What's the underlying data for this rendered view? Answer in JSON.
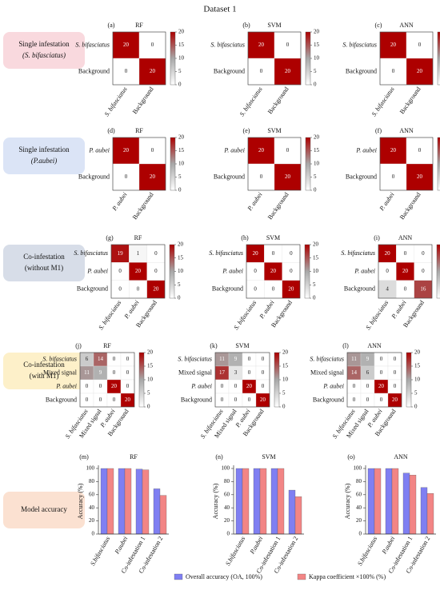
{
  "title": "Dataset 1",
  "row_labels": [
    {
      "lines": [
        "Single infestation",
        "(S. bifasciatus)"
      ],
      "styles": [
        "normal",
        "italic"
      ],
      "color": "#f9d9de"
    },
    {
      "lines": [
        "Single infestation",
        "(P.aubei)"
      ],
      "styles": [
        "normal",
        "italic"
      ],
      "color": "#dbe4f6"
    },
    {
      "lines": [
        "Co-infestation",
        "(without M1)"
      ],
      "styles": [
        "normal",
        "normal"
      ],
      "color": "#d7dde8"
    },
    {
      "lines": [
        "Co-infestation",
        "(with M1)"
      ],
      "styles": [
        "normal",
        "normal"
      ],
      "color": "#fdf0c9"
    },
    {
      "lines": [
        "Model accuracy"
      ],
      "styles": [
        "normal"
      ],
      "color": "#fbe1d1"
    }
  ],
  "legend": [
    {
      "name": "Overall accuracy (OA, 100%)",
      "color": "#7f7ff2"
    },
    {
      "name": "Kappa coefficient ×100% (%)",
      "color": "#f28585"
    }
  ],
  "chart_data": [
    {
      "type": "heatmap",
      "panel": "(a)",
      "title": "RF",
      "categories": [
        "S. bifasciatus",
        "Background"
      ],
      "category_styles": [
        "italic",
        "normal"
      ],
      "values": [
        [
          20,
          0
        ],
        [
          0,
          20
        ]
      ],
      "zlim": [
        0,
        20
      ],
      "zticks": [
        0,
        5,
        10,
        15,
        20
      ],
      "colormap": [
        "#ffffff",
        "#a8a8a8",
        "#ad0000"
      ]
    },
    {
      "type": "heatmap",
      "panel": "(b)",
      "title": "SVM",
      "categories": [
        "S. bifasciatus",
        "Background"
      ],
      "category_styles": [
        "italic",
        "normal"
      ],
      "values": [
        [
          20,
          0
        ],
        [
          0,
          20
        ]
      ],
      "zlim": [
        0,
        20
      ],
      "zticks": [
        0,
        5,
        10,
        15,
        20
      ],
      "colormap": [
        "#ffffff",
        "#a8a8a8",
        "#ad0000"
      ]
    },
    {
      "type": "heatmap",
      "panel": "(c)",
      "title": "ANN",
      "categories": [
        "S. bifasciatus",
        "Background"
      ],
      "category_styles": [
        "italic",
        "normal"
      ],
      "values": [
        [
          20,
          0
        ],
        [
          0,
          20
        ]
      ],
      "zlim": [
        0,
        20
      ],
      "zticks": [
        0,
        5,
        10,
        15,
        20
      ],
      "colormap": [
        "#ffffff",
        "#a8a8a8",
        "#ad0000"
      ]
    },
    {
      "type": "heatmap",
      "panel": "(d)",
      "title": "RF",
      "categories": [
        "P. aubei",
        "Background"
      ],
      "category_styles": [
        "italic",
        "normal"
      ],
      "values": [
        [
          20,
          0
        ],
        [
          0,
          20
        ]
      ],
      "zlim": [
        0,
        20
      ],
      "zticks": [
        0,
        5,
        10,
        15,
        20
      ],
      "colormap": [
        "#ffffff",
        "#a8a8a8",
        "#ad0000"
      ]
    },
    {
      "type": "heatmap",
      "panel": "(e)",
      "title": "SVM",
      "categories": [
        "P. aubei",
        "Background"
      ],
      "category_styles": [
        "italic",
        "normal"
      ],
      "values": [
        [
          20,
          0
        ],
        [
          0,
          20
        ]
      ],
      "zlim": [
        0,
        20
      ],
      "zticks": [
        0,
        5,
        10,
        15,
        20
      ],
      "colormap": [
        "#ffffff",
        "#a8a8a8",
        "#ad0000"
      ]
    },
    {
      "type": "heatmap",
      "panel": "(f)",
      "title": "ANN",
      "categories": [
        "P. aubei",
        "Background"
      ],
      "category_styles": [
        "italic",
        "normal"
      ],
      "values": [
        [
          20,
          0
        ],
        [
          0,
          20
        ]
      ],
      "zlim": [
        0,
        20
      ],
      "zticks": [
        0,
        5,
        10,
        15,
        20
      ],
      "colormap": [
        "#ffffff",
        "#a8a8a8",
        "#ad0000"
      ]
    },
    {
      "type": "heatmap",
      "panel": "(g)",
      "title": "RF",
      "categories": [
        "S. bifasciatus",
        "P. aubei",
        "Background"
      ],
      "category_styles": [
        "italic",
        "italic",
        "normal"
      ],
      "values": [
        [
          19,
          1,
          0
        ],
        [
          0,
          20,
          0
        ],
        [
          0,
          0,
          20
        ]
      ],
      "zlim": [
        0,
        20
      ],
      "zticks": [
        0,
        5,
        10,
        15,
        20
      ],
      "colormap": [
        "#ffffff",
        "#a8a8a8",
        "#ad0000"
      ]
    },
    {
      "type": "heatmap",
      "panel": "(h)",
      "title": "SVM",
      "categories": [
        "S. bifasciatus",
        "P. aubei",
        "Background"
      ],
      "category_styles": [
        "italic",
        "italic",
        "normal"
      ],
      "values": [
        [
          20,
          0,
          0
        ],
        [
          0,
          20,
          0
        ],
        [
          0,
          0,
          20
        ]
      ],
      "zlim": [
        0,
        20
      ],
      "zticks": [
        0,
        5,
        10,
        15,
        20
      ],
      "colormap": [
        "#ffffff",
        "#a8a8a8",
        "#ad0000"
      ]
    },
    {
      "type": "heatmap",
      "panel": "(i)",
      "title": "ANN",
      "categories": [
        "S. bifasciatus",
        "P. aubei",
        "Background"
      ],
      "category_styles": [
        "italic",
        "italic",
        "normal"
      ],
      "values": [
        [
          20,
          0,
          0
        ],
        [
          0,
          20,
          0
        ],
        [
          4,
          0,
          16
        ]
      ],
      "zlim": [
        0,
        20
      ],
      "zticks": [
        0,
        5,
        10,
        15,
        20
      ],
      "colormap": [
        "#ffffff",
        "#a8a8a8",
        "#ad0000"
      ]
    },
    {
      "type": "heatmap",
      "panel": "(j)",
      "title": "RF",
      "categories": [
        "S. bifasciatus",
        "Mixed signal",
        "P. aubei",
        "Background"
      ],
      "category_styles": [
        "italic",
        "normal",
        "italic",
        "normal"
      ],
      "values": [
        [
          6,
          14,
          0,
          0
        ],
        [
          11,
          9,
          0,
          0
        ],
        [
          0,
          0,
          20,
          0
        ],
        [
          0,
          0,
          0,
          20
        ]
      ],
      "zlim": [
        0,
        20
      ],
      "zticks": [
        0,
        5,
        10,
        15,
        20
      ],
      "colormap": [
        "#ffffff",
        "#a8a8a8",
        "#ad0000"
      ]
    },
    {
      "type": "heatmap",
      "panel": "(k)",
      "title": "SVM",
      "categories": [
        "S. bifasciatus",
        "Mixed signal",
        "P. aubei",
        "Background"
      ],
      "category_styles": [
        "italic",
        "normal",
        "italic",
        "normal"
      ],
      "values": [
        [
          11,
          9,
          0,
          0
        ],
        [
          17,
          3,
          0,
          0
        ],
        [
          0,
          0,
          20,
          0
        ],
        [
          0,
          0,
          0,
          20
        ]
      ],
      "zlim": [
        0,
        20
      ],
      "zticks": [
        0,
        5,
        10,
        15,
        20
      ],
      "colormap": [
        "#ffffff",
        "#a8a8a8",
        "#ad0000"
      ]
    },
    {
      "type": "heatmap",
      "panel": "(l)",
      "title": "ANN",
      "categories": [
        "S. bifasciatus",
        "Mixed signal",
        "P. aubei",
        "Background"
      ],
      "category_styles": [
        "italic",
        "normal",
        "italic",
        "normal"
      ],
      "values": [
        [
          11,
          9,
          0,
          0
        ],
        [
          14,
          6,
          0,
          0
        ],
        [
          0,
          0,
          20,
          0
        ],
        [
          0,
          0,
          0,
          20
        ]
      ],
      "zlim": [
        0,
        20
      ],
      "zticks": [
        0,
        5,
        10,
        15,
        20
      ],
      "colormap": [
        "#ffffff",
        "#a8a8a8",
        "#ad0000"
      ]
    },
    {
      "type": "bar",
      "panel": "(m)",
      "title": "RF",
      "ylabel": "Accuracy (%)",
      "categories": [
        "S.bifasciatus",
        "P.aubei",
        "Co-infestation 1",
        "Co-infestation 2"
      ],
      "series": [
        {
          "values": [
            100,
            100,
            99,
            69
          ]
        },
        {
          "values": [
            100,
            100,
            98,
            59
          ]
        }
      ],
      "ylim": [
        0,
        100
      ],
      "yticks": [
        0,
        20,
        40,
        60,
        80,
        100
      ]
    },
    {
      "type": "bar",
      "panel": "(n)",
      "title": "SVM",
      "ylabel": "Accuracy (%)",
      "categories": [
        "S.bifasciatus",
        "P.aubei",
        "Co-infestation 1",
        "Co-infestation 2"
      ],
      "series": [
        {
          "values": [
            100,
            100,
            100,
            67
          ]
        },
        {
          "values": [
            100,
            100,
            100,
            57
          ]
        }
      ],
      "ylim": [
        0,
        100
      ],
      "yticks": [
        0,
        20,
        40,
        60,
        80,
        100
      ]
    },
    {
      "type": "bar",
      "panel": "(o)",
      "title": "ANN",
      "ylabel": "Accuracy (%)",
      "categories": [
        "S.bifasciatus",
        "P.aubei",
        "Co-infestation 1",
        "Co-infestation 2"
      ],
      "series": [
        {
          "values": [
            100,
            100,
            93,
            71
          ]
        },
        {
          "values": [
            100,
            100,
            90,
            62
          ]
        }
      ],
      "ylim": [
        0,
        100
      ],
      "yticks": [
        0,
        20,
        40,
        60,
        80,
        100
      ]
    }
  ]
}
